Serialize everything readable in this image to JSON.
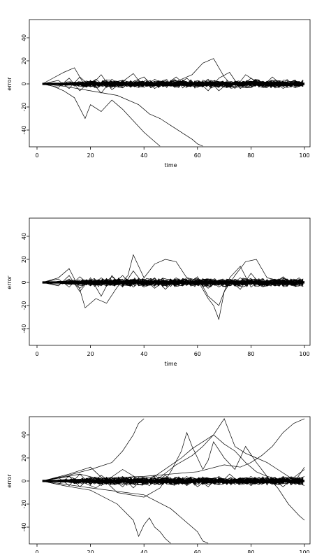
{
  "chart_data": [
    {
      "type": "line",
      "xlabel": "time",
      "ylabel": "error",
      "xlim": [
        0,
        100
      ],
      "ylim": [
        -54,
        54
      ],
      "xticks": [
        0,
        20,
        40,
        60,
        80,
        100
      ],
      "yticks": [
        -40,
        -20,
        0,
        20,
        40
      ],
      "grid": false,
      "series": [
        {
          "x": [
            2,
            10,
            14,
            18,
            22,
            26,
            30,
            34,
            38,
            42,
            46,
            50,
            54,
            58,
            62,
            66,
            70,
            74,
            78,
            82,
            86,
            90,
            94,
            98,
            100
          ],
          "y": [
            0,
            10,
            14,
            -2,
            4,
            -3,
            2,
            -1,
            3,
            -2,
            1,
            0,
            4,
            8,
            18,
            22,
            6,
            -4,
            8,
            2,
            -1,
            0,
            1,
            0,
            1
          ]
        },
        {
          "x": [
            2,
            6,
            10,
            14,
            18,
            20,
            24,
            28,
            32,
            36,
            40,
            44,
            46
          ],
          "y": [
            0,
            -2,
            -6,
            -12,
            -30,
            -18,
            -24,
            -14,
            -22,
            -32,
            -42,
            -50,
            -54
          ]
        },
        {
          "x": [
            2,
            10,
            20,
            30,
            38,
            42,
            46,
            50,
            54,
            58,
            60,
            62
          ],
          "y": [
            0,
            -2,
            -6,
            -10,
            -18,
            -26,
            -30,
            -36,
            -42,
            -48,
            -52,
            -54
          ]
        },
        {
          "x": [
            2,
            8,
            12,
            16,
            20,
            24,
            28,
            32,
            36,
            40,
            44,
            48,
            52,
            56,
            60,
            64,
            68,
            72,
            76,
            80,
            84,
            88,
            92,
            96,
            100
          ],
          "y": [
            0,
            3,
            -4,
            6,
            -2,
            8,
            -5,
            2,
            9,
            -3,
            4,
            -1,
            6,
            -2,
            3,
            -6,
            5,
            10,
            -4,
            2,
            -3,
            6,
            -2,
            3,
            0
          ]
        },
        {
          "x": [
            2,
            8,
            12,
            16,
            20,
            24,
            28,
            32,
            36,
            40,
            44,
            48,
            52,
            56,
            60,
            64,
            68,
            72,
            76,
            80,
            84,
            88,
            92,
            96,
            100
          ],
          "y": [
            0,
            -3,
            5,
            -6,
            3,
            -8,
            4,
            -3,
            2,
            6,
            -4,
            3,
            -2,
            5,
            -3,
            4,
            -6,
            2,
            -3,
            5,
            -2,
            3,
            -4,
            2,
            -1
          ]
        }
      ]
    },
    {
      "type": "line",
      "xlabel": "time",
      "ylabel": "error",
      "xlim": [
        0,
        100
      ],
      "ylim": [
        -54,
        54
      ],
      "xticks": [
        0,
        20,
        40,
        60,
        80,
        100
      ],
      "yticks": [
        -40,
        -20,
        0,
        20,
        40
      ],
      "grid": false,
      "series": [
        {
          "x": [
            2,
            8,
            12,
            16,
            18,
            22,
            26,
            30,
            34,
            36,
            40,
            44,
            48,
            52,
            56,
            60,
            64,
            66,
            68,
            70,
            74,
            78,
            82,
            86,
            90,
            94,
            98,
            100
          ],
          "y": [
            0,
            4,
            12,
            -6,
            -22,
            -14,
            -18,
            -4,
            6,
            24,
            4,
            16,
            20,
            18,
            4,
            2,
            -14,
            -20,
            -32,
            -8,
            6,
            18,
            20,
            4,
            2,
            -2,
            4,
            0
          ]
        },
        {
          "x": [
            2,
            8,
            12,
            16,
            20,
            24,
            28,
            32,
            36,
            40,
            44,
            48,
            52,
            56,
            60,
            64,
            68,
            72,
            76,
            80,
            84,
            88,
            92,
            96,
            100
          ],
          "y": [
            0,
            -3,
            6,
            -8,
            4,
            -12,
            6,
            -4,
            10,
            -2,
            4,
            -6,
            3,
            -2,
            5,
            -12,
            -20,
            4,
            14,
            -4,
            3,
            -2,
            5,
            -3,
            1
          ]
        },
        {
          "x": [
            2,
            8,
            12,
            16,
            20,
            24,
            28,
            32,
            36,
            40,
            44,
            48,
            52,
            56,
            60,
            64,
            68,
            72,
            76,
            80,
            84,
            88,
            92,
            96,
            100
          ],
          "y": [
            0,
            3,
            -4,
            5,
            -3,
            4,
            -2,
            6,
            -4,
            3,
            -5,
            2,
            -3,
            4,
            -2,
            3,
            -4,
            2,
            -6,
            8,
            -3,
            2,
            -2,
            3,
            0
          ]
        },
        {
          "x": [
            2,
            8,
            12,
            16,
            20,
            24,
            28,
            32,
            36,
            40,
            44,
            48,
            52,
            56,
            60,
            64,
            68,
            72,
            76,
            80,
            84,
            88,
            92,
            96,
            100
          ],
          "y": [
            0,
            -2,
            3,
            -5,
            2,
            -3,
            5,
            -2,
            3,
            -4,
            2,
            -3,
            4,
            -2,
            3,
            -5,
            2,
            -3,
            4,
            -2,
            3,
            -2,
            4,
            -2,
            1
          ]
        }
      ]
    },
    {
      "type": "line",
      "xlabel": "",
      "ylabel": "error",
      "xlim": [
        0,
        100
      ],
      "ylim": [
        -54,
        54
      ],
      "xticks": [
        0,
        20,
        40,
        60,
        80,
        100
      ],
      "yticks": [
        -40,
        -20,
        0,
        20,
        40
      ],
      "grid": false,
      "series": [
        {
          "x": [
            2,
            10,
            20,
            28,
            32,
            36,
            38,
            40
          ],
          "y": [
            0,
            4,
            10,
            16,
            26,
            40,
            50,
            54
          ]
        },
        {
          "x": [
            2,
            10,
            20,
            30,
            36,
            38,
            40,
            42,
            44,
            46,
            48,
            50
          ],
          "y": [
            0,
            -4,
            -8,
            -20,
            -34,
            -48,
            -38,
            -32,
            -40,
            -44,
            -50,
            -54
          ]
        },
        {
          "x": [
            2,
            12,
            20,
            30,
            40,
            46,
            50,
            54,
            56,
            58,
            60,
            62,
            64,
            66,
            70,
            74,
            78,
            82,
            86,
            90,
            94,
            98,
            100
          ],
          "y": [
            0,
            6,
            12,
            -10,
            -14,
            -6,
            8,
            26,
            42,
            30,
            20,
            10,
            18,
            34,
            20,
            10,
            30,
            16,
            4,
            -6,
            -20,
            -30,
            -34
          ]
        },
        {
          "x": [
            2,
            12,
            22,
            32,
            42,
            52,
            58,
            62,
            66,
            70,
            74,
            78,
            82,
            86,
            90,
            94,
            98,
            100
          ],
          "y": [
            0,
            4,
            -6,
            10,
            -4,
            14,
            22,
            30,
            40,
            32,
            26,
            16,
            8,
            4,
            2,
            -2,
            2,
            4
          ]
        },
        {
          "x": [
            2,
            16,
            30,
            44,
            54,
            58,
            62,
            66,
            70,
            74,
            78,
            82,
            86,
            90,
            94,
            98,
            100
          ],
          "y": [
            0,
            6,
            -2,
            4,
            20,
            28,
            34,
            40,
            54,
            30,
            24,
            20,
            16,
            10,
            4,
            -2,
            -4
          ]
        },
        {
          "x": [
            2,
            20,
            40,
            50,
            56,
            60,
            62,
            64
          ],
          "y": [
            0,
            -6,
            -12,
            -24,
            -36,
            -44,
            -52,
            -54
          ]
        },
        {
          "x": [
            2,
            20,
            40,
            60,
            70,
            76,
            80,
            84,
            88,
            92,
            96,
            100
          ],
          "y": [
            0,
            2,
            4,
            8,
            14,
            12,
            16,
            22,
            30,
            42,
            50,
            54
          ]
        },
        {
          "x": [
            2,
            8,
            12,
            16,
            20,
            24,
            28,
            32,
            36,
            40,
            44,
            48,
            52,
            56,
            60,
            64,
            68,
            72,
            76,
            80,
            84,
            88,
            92,
            96,
            100
          ],
          "y": [
            0,
            3,
            -4,
            6,
            -3,
            5,
            -2,
            4,
            -6,
            3,
            -2,
            5,
            -3,
            4,
            -5,
            2,
            -3,
            6,
            -2,
            4,
            -3,
            2,
            -5,
            3,
            10
          ]
        },
        {
          "x": [
            2,
            8,
            12,
            16,
            20,
            24,
            28,
            32,
            36,
            40,
            44,
            48,
            52,
            56,
            60,
            64,
            68,
            72,
            76,
            80,
            84,
            88,
            92,
            96,
            100
          ],
          "y": [
            0,
            -3,
            4,
            -5,
            3,
            -4,
            2,
            -5,
            4,
            -3,
            5,
            -2,
            3,
            -4,
            2,
            -5,
            4,
            -2,
            3,
            -4,
            2,
            -3,
            4,
            -2,
            12
          ]
        }
      ]
    }
  ]
}
